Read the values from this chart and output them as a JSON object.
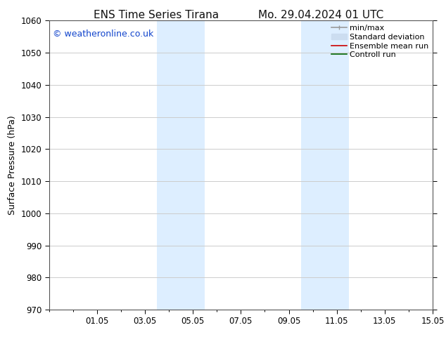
{
  "title_left": "ENS Time Series Tirana",
  "title_right": "Mo. 29.04.2024 01 UTC",
  "ylabel": "Surface Pressure (hPa)",
  "ylim": [
    970,
    1060
  ],
  "yticks": [
    970,
    980,
    990,
    1000,
    1010,
    1020,
    1030,
    1040,
    1050,
    1060
  ],
  "xlim": [
    0,
    16
  ],
  "xtick_labels": [
    "01.05",
    "03.05",
    "05.05",
    "07.05",
    "09.05",
    "11.05",
    "13.05",
    "15.05"
  ],
  "xtick_positions": [
    2,
    4,
    6,
    8,
    10,
    12,
    14,
    16
  ],
  "background_color": "#ffffff",
  "plot_bg_color": "#ffffff",
  "shaded_bands": [
    {
      "x_start": 5.0,
      "x_end": 5.5,
      "color": "#ddeeff"
    },
    {
      "x_start": 5.5,
      "x_end": 6.5,
      "color": "#ddeeff"
    },
    {
      "x_start": 6.5,
      "x_end": 7.0,
      "color": "#ddeeff"
    },
    {
      "x_start": 11.0,
      "x_end": 11.5,
      "color": "#ddeeff"
    },
    {
      "x_start": 11.5,
      "x_end": 12.5,
      "color": "#ddeeff"
    },
    {
      "x_start": 12.5,
      "x_end": 13.0,
      "color": "#ddeeff"
    }
  ],
  "shaded_pairs": [
    {
      "x_start": 4.5,
      "x_end": 6.5
    },
    {
      "x_start": 10.5,
      "x_end": 12.5
    }
  ],
  "watermark_text": "© weatheronline.co.uk",
  "watermark_color": "#1144cc",
  "legend_items": [
    {
      "label": "min/max",
      "color": "#999999",
      "lw": 1.2
    },
    {
      "label": "Standard deviation",
      "color": "#ccddf0",
      "lw": 8
    },
    {
      "label": "Ensemble mean run",
      "color": "#cc0000",
      "lw": 1.2
    },
    {
      "label": "Controll run",
      "color": "#006600",
      "lw": 1.2
    }
  ],
  "grid_color": "#cccccc",
  "spine_color": "#555555",
  "tick_label_fontsize": 8.5,
  "axis_label_fontsize": 9,
  "title_fontsize": 11,
  "watermark_fontsize": 9,
  "legend_fontsize": 8
}
